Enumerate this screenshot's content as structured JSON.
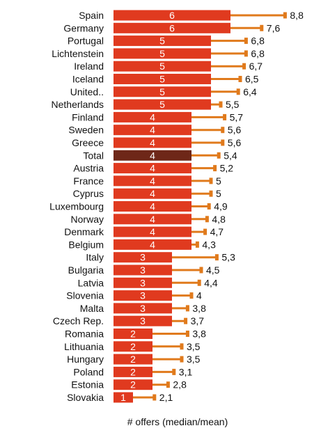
{
  "chart_data": {
    "type": "bar",
    "orientation": "horizontal",
    "xlabel": "# offers (median/mean)",
    "categories": [
      "Spain",
      "Germany",
      "Portugal",
      "Lichtenstein",
      "Ireland",
      "Iceland",
      "United..",
      "Netherlands",
      "Finland",
      "Sweden",
      "Greece",
      "Total",
      "Austria",
      "France",
      "Cyprus",
      "Luxembourg",
      "Norway",
      "Denmark",
      "Belgium",
      "Italy",
      "Bulgaria",
      "Latvia",
      "Slovenia",
      "Malta",
      "Czech Rep.",
      "Romania",
      "Lithuania",
      "Hungary",
      "Poland",
      "Estonia",
      "Slovakia"
    ],
    "series": [
      {
        "name": "median",
        "values": [
          6,
          6,
          5,
          5,
          5,
          5,
          5,
          5,
          4,
          4,
          4,
          4,
          4,
          4,
          4,
          4,
          4,
          4,
          4,
          3,
          3,
          3,
          3,
          3,
          3,
          2,
          2,
          2,
          2,
          2,
          1
        ]
      },
      {
        "name": "mean",
        "values": [
          8.8,
          7.6,
          6.8,
          6.8,
          6.7,
          6.5,
          6.4,
          5.5,
          5.7,
          5.6,
          5.6,
          5.4,
          5.2,
          5,
          5,
          4.9,
          4.8,
          4.7,
          4.3,
          5.3,
          4.5,
          4.4,
          4,
          3.8,
          3.7,
          3.8,
          3.5,
          3.5,
          3.1,
          2.8,
          2.1
        ]
      }
    ],
    "median_labels": [
      "6",
      "6",
      "5",
      "5",
      "5",
      "5",
      "5",
      "5",
      "4",
      "4",
      "4",
      "4",
      "4",
      "4",
      "4",
      "4",
      "4",
      "4",
      "4",
      "3",
      "3",
      "3",
      "3",
      "3",
      "3",
      "2",
      "2",
      "2",
      "2",
      "2",
      "1"
    ],
    "mean_labels": [
      "8,8",
      "7,6",
      "6,8",
      "6,8",
      "6,7",
      "6,5",
      "6,4",
      "5,5",
      "5,7",
      "5,6",
      "5,6",
      "5,4",
      "5,2",
      "5",
      "5",
      "4,9",
      "4,8",
      "4,7",
      "4,3",
      "5,3",
      "4,5",
      "4,4",
      "4",
      "3,8",
      "3,7",
      "3,8",
      "3,5",
      "3,5",
      "3,1",
      "2,8",
      "2,1"
    ],
    "highlight_category": "Total",
    "colors": {
      "bar": "#e03a1f",
      "highlight_bar": "#6e2718",
      "mean_marker": "#e07a1c",
      "bar_label": "#ffffff",
      "text": "#111111"
    }
  }
}
